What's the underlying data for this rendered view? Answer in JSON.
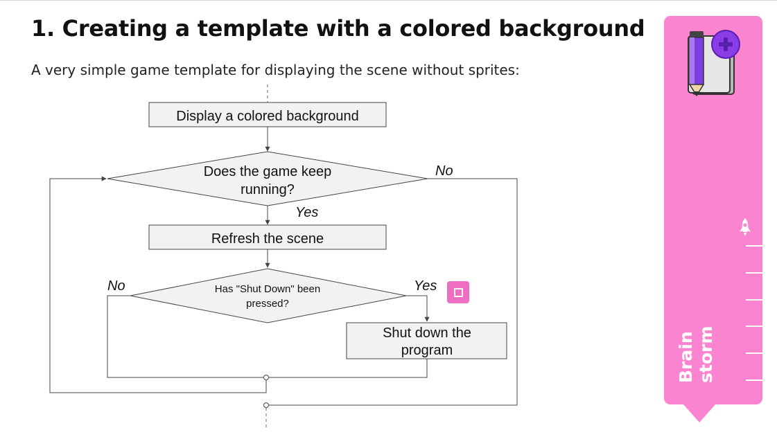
{
  "heading": "1. Creating a template with a colored background",
  "subheading": "A very simple game template for displaying the scene without sprites:",
  "flowchart": {
    "box_display": "Display a colored background",
    "decision_running": [
      "Does the game keep",
      "running?"
    ],
    "label_no_running": "No",
    "label_yes_running": "Yes",
    "box_refresh": "Refresh the scene",
    "decision_shutdown": [
      "Has \"Shut Down\" been",
      "pressed?"
    ],
    "label_no_shutdown": "No",
    "label_yes_shutdown": "Yes",
    "box_shutdown": [
      "Shut down the",
      "program"
    ]
  },
  "stop_button_icon": "stop-square-icon",
  "side_panel": {
    "label_line1": "Brain",
    "label_line2": "storm",
    "book_icon": "notebook-pencil-plus-icon",
    "rocket_icon": "rocket-icon",
    "tick_count": 6,
    "color": "#fa84cf"
  },
  "colors": {
    "accent_pink": "#ee6ec1",
    "plus_purple": "#8a3ce6",
    "pencil_purple": "#7c3ee0",
    "flow_fill": "#f2f2f2",
    "flow_stroke": "#444444"
  }
}
